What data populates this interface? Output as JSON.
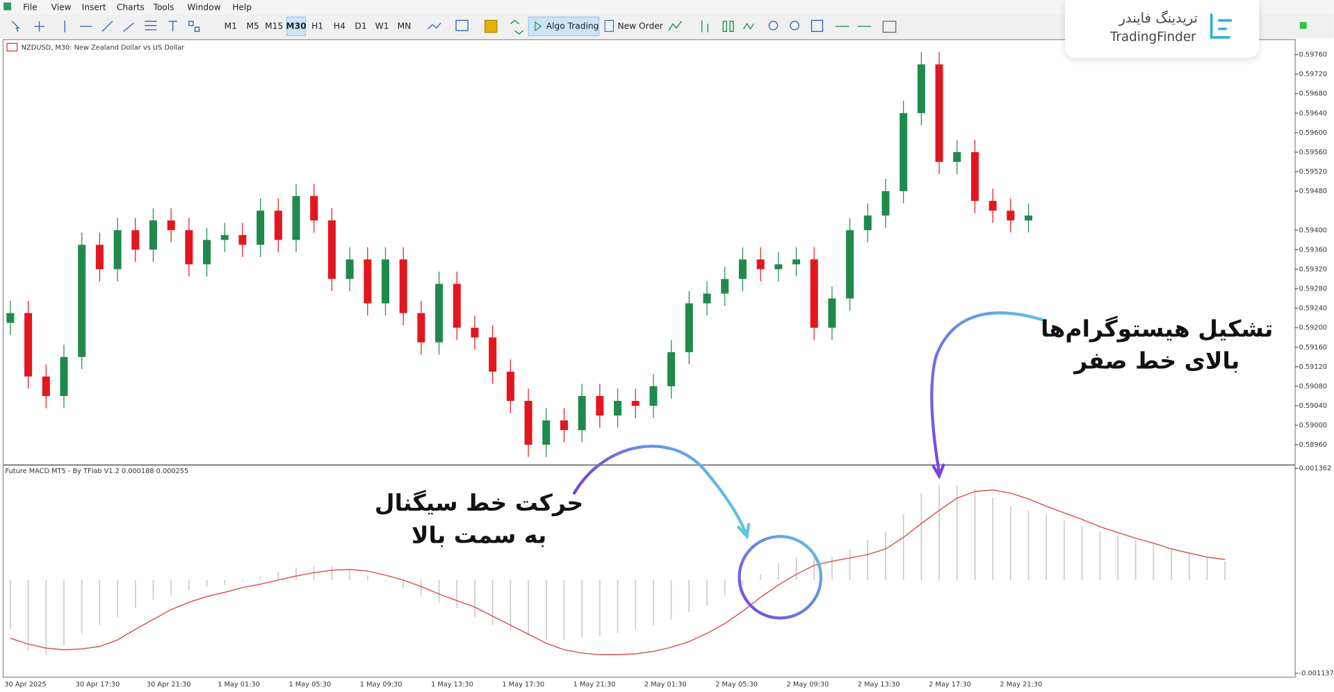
{
  "menu": [
    "File",
    "View",
    "Insert",
    "Charts",
    "Tools",
    "Window",
    "Help"
  ],
  "toolbar": {
    "timeframes": [
      "M1",
      "M5",
      "M15",
      "M30",
      "H1",
      "H4",
      "D1",
      "W1",
      "MN"
    ],
    "active_timeframe": "M30",
    "algo_trading": "Algo Trading",
    "new_order": "New Order"
  },
  "logo": {
    "persian": "تریدینگ فایندر",
    "latin": "TradingFinder"
  },
  "annotations": [
    {
      "lines": [
        "تشکیل هیستوگرام‌ها",
        "بالای خط صفر"
      ]
    },
    {
      "lines": [
        "حرکت خط سیگنال",
        "به سمت بالا"
      ]
    }
  ],
  "time_labels": [
    "30 Apr 2025",
    "30 Apr 17:30",
    "30 Apr 21:30",
    "1 May 01:30",
    "1 May 05:30",
    "1 May 09:30",
    "1 May 13:30",
    "1 May 17:30",
    "1 May 21:30",
    "2 May 01:30",
    "2 May 05:30",
    "2 May 09:30",
    "2 May 13:30",
    "2 May 17:30",
    "2 May 21:30"
  ],
  "chart_data": [
    {
      "type": "candlestick",
      "title": "NZDUSD, M30:  New Zealand Dollar vs US Dollar",
      "up_color": "#1f8a4c",
      "down_color": "#e3161f",
      "ylim": [
        0.58922,
        0.5979
      ],
      "yticks": [
        {
          "value": 0.5976,
          "label": "0.59760"
        },
        {
          "value": 0.5972,
          "label": "0.59720"
        },
        {
          "value": 0.5968,
          "label": "0.59680"
        },
        {
          "value": 0.5964,
          "label": "0.59640"
        },
        {
          "value": 0.596,
          "label": "0.59600"
        },
        {
          "value": 0.5956,
          "label": "0.59560"
        },
        {
          "value": 0.5952,
          "label": "0.59520"
        },
        {
          "value": 0.5948,
          "label": "0.59480"
        },
        {
          "value": 0.594,
          "label": "0.59400"
        },
        {
          "value": 0.5936,
          "label": "0.59360"
        },
        {
          "value": 0.5932,
          "label": "0.59320"
        },
        {
          "value": 0.5928,
          "label": "0.59280"
        },
        {
          "value": 0.5924,
          "label": "0.59240"
        },
        {
          "value": 0.592,
          "label": "0.59200"
        },
        {
          "value": 0.5916,
          "label": "0.59160"
        },
        {
          "value": 0.5912,
          "label": "0.59120"
        },
        {
          "value": 0.5908,
          "label": "0.59080"
        },
        {
          "value": 0.5904,
          "label": "0.59040"
        },
        {
          "value": 0.59,
          "label": "0.59000"
        },
        {
          "value": 0.5896,
          "label": "0.58960"
        }
      ],
      "open": [
        0.5921,
        0.5923,
        0.591,
        0.5906,
        0.5914,
        0.5937,
        0.5932,
        0.594,
        0.5936,
        0.5942,
        0.594,
        0.5933,
        0.5938,
        0.5939,
        0.5937,
        0.5944,
        0.5938,
        0.5947,
        0.5942,
        0.593,
        0.5934,
        0.5925,
        0.5934,
        0.5923,
        0.5917,
        0.5929,
        0.592,
        0.5918,
        0.5911,
        0.5905,
        0.5896,
        0.5901,
        0.5899,
        0.5906,
        0.5902,
        0.5905,
        0.5904,
        0.5908,
        0.5915,
        0.5925,
        0.5927,
        0.593,
        0.5934,
        0.5932,
        0.5933,
        0.5934,
        0.592,
        0.5926,
        0.594,
        0.5943,
        0.5948,
        0.5964,
        0.5974,
        0.5954,
        0.5956,
        0.5946,
        0.5944,
        0.5942
      ],
      "high": [
        0.59255,
        0.59255,
        0.59125,
        0.59165,
        0.59395,
        0.59395,
        0.59425,
        0.59425,
        0.59445,
        0.59445,
        0.59425,
        0.59405,
        0.59415,
        0.59415,
        0.59465,
        0.59465,
        0.59495,
        0.59495,
        0.59445,
        0.59365,
        0.59365,
        0.59365,
        0.59365,
        0.59255,
        0.59315,
        0.59315,
        0.59225,
        0.59205,
        0.59135,
        0.59075,
        0.59035,
        0.59035,
        0.59085,
        0.59085,
        0.59075,
        0.59075,
        0.59105,
        0.59175,
        0.59275,
        0.59295,
        0.59325,
        0.59365,
        0.59365,
        0.59355,
        0.59365,
        0.59365,
        0.59285,
        0.59425,
        0.59455,
        0.59505,
        0.59665,
        0.59765,
        0.59765,
        0.59585,
        0.59585,
        0.59485,
        0.59465,
        0.59455
      ],
      "low": [
        0.59185,
        0.59075,
        0.59035,
        0.59035,
        0.59115,
        0.59295,
        0.59295,
        0.59335,
        0.59335,
        0.59375,
        0.59305,
        0.59305,
        0.59355,
        0.59345,
        0.59345,
        0.59355,
        0.59355,
        0.59395,
        0.59275,
        0.59275,
        0.59225,
        0.59225,
        0.59205,
        0.59145,
        0.59145,
        0.59175,
        0.59155,
        0.59085,
        0.59025,
        0.58935,
        0.58935,
        0.58965,
        0.58965,
        0.58995,
        0.58995,
        0.59015,
        0.59015,
        0.59055,
        0.59125,
        0.59225,
        0.59245,
        0.59275,
        0.59295,
        0.59295,
        0.59305,
        0.59175,
        0.59175,
        0.59235,
        0.59375,
        0.59405,
        0.59455,
        0.59615,
        0.59515,
        0.59515,
        0.59435,
        0.59415,
        0.59395,
        0.59395
      ],
      "close": [
        0.5923,
        0.591,
        0.5906,
        0.5914,
        0.5937,
        0.5932,
        0.594,
        0.5936,
        0.5942,
        0.594,
        0.5933,
        0.5938,
        0.5939,
        0.5937,
        0.5944,
        0.5938,
        0.5947,
        0.5942,
        0.593,
        0.5934,
        0.5925,
        0.5934,
        0.5923,
        0.5917,
        0.5929,
        0.592,
        0.5918,
        0.5911,
        0.5905,
        0.5896,
        0.5901,
        0.5899,
        0.5906,
        0.5902,
        0.5905,
        0.5904,
        0.5908,
        0.5915,
        0.5925,
        0.5927,
        0.593,
        0.5934,
        0.5932,
        0.5933,
        0.5934,
        0.592,
        0.5926,
        0.594,
        0.5943,
        0.5948,
        0.5964,
        0.5974,
        0.5954,
        0.5956,
        0.5946,
        0.5944,
        0.5942,
        0.5943
      ]
    },
    {
      "type": "macd",
      "title": "Future MACD MT5 - By TFlab V1.2 0.000188 0.000255",
      "ylim": [
        -0.001137,
        0.001362
      ],
      "yticks": [
        0.001362,
        -0.001137
      ],
      "series": [
        {
          "name": "histogram",
          "color": "#c8c8c8",
          "values": [
            -0.0006,
            -0.00086,
            -0.00091,
            -0.0008,
            -0.00065,
            -0.00055,
            -0.00045,
            -0.00034,
            -0.00024,
            -0.00019,
            -0.00013,
            -8e-05,
            -6e-05,
            -2e-05,
            4e-05,
            0.0001,
            0.00015,
            0.00017,
            0.00017,
            0.00012,
            6e-05,
            -2e-05,
            -0.0001,
            -0.00019,
            -0.00027,
            -0.00034,
            -0.00045,
            -0.00055,
            -0.00062,
            -0.00068,
            -0.00073,
            -0.00073,
            -0.0007,
            -0.00068,
            -0.00065,
            -0.0006,
            -0.00055,
            -0.00048,
            -0.00039,
            -0.00031,
            -0.00019,
            -6e-05,
            7e-05,
            0.00021,
            0.00028,
            0.00028,
            0.00028,
            0.00038,
            0.00049,
            0.00059,
            0.0008,
            0.00106,
            0.00116,
            0.00116,
            0.00111,
            0.00101,
            0.0009,
            0.00085,
            0.0008,
            0.00073,
            0.00066,
            0.00059,
            0.00054,
            0.00049,
            0.00044,
            0.00038,
            0.00033,
            0.00028,
            0.00023
          ]
        },
        {
          "name": "signal",
          "color": "#d9534f",
          "values": [
            -0.00071,
            -0.00078,
            -0.00083,
            -0.00085,
            -0.00084,
            -0.00081,
            -0.00073,
            -0.0006,
            -0.00048,
            -0.00036,
            -0.00027,
            -0.0002,
            -0.00015,
            -9e-05,
            -5e-05,
            0,
            5e-05,
            9e-05,
            0.00012,
            0.00013,
            0.00011,
            6e-05,
            0,
            -8e-05,
            -0.00017,
            -0.00025,
            -0.00033,
            -0.00044,
            -0.00055,
            -0.00066,
            -0.00077,
            -0.00085,
            -0.00089,
            -0.00091,
            -0.00091,
            -0.0009,
            -0.00087,
            -0.00082,
            -0.00075,
            -0.00065,
            -0.00053,
            -0.00038,
            -0.00021,
            -6e-05,
            7e-05,
            0.00018,
            0.00023,
            0.00027,
            0.00031,
            0.00038,
            0.00052,
            0.00069,
            0.00085,
            0.001,
            0.00108,
            0.0011,
            0.00106,
            0.00099,
            0.0009,
            0.00082,
            0.00074,
            0.00065,
            0.00058,
            0.00051,
            0.00045,
            0.00038,
            0.00033,
            0.00028,
            0.00025
          ]
        }
      ]
    }
  ]
}
